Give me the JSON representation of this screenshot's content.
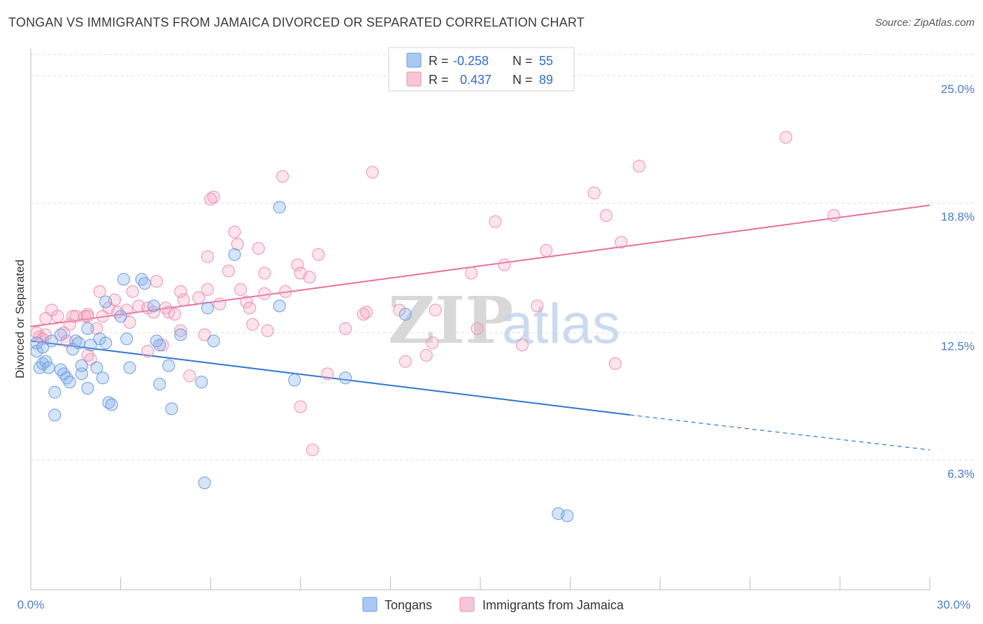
{
  "header": {
    "title": "TONGAN VS IMMIGRANTS FROM JAMAICA DIVORCED OR SEPARATED CORRELATION CHART",
    "source": "Source: ZipAtlas.com"
  },
  "watermark": {
    "part1": "ZIP",
    "part2": "atlas"
  },
  "legend": {
    "rows": [
      {
        "r_label": "R =",
        "r_value": "-0.258",
        "n_label": "N =",
        "n_value": "55",
        "color": "#a9c8f2"
      },
      {
        "r_label": "R =",
        "r_value": "0.437",
        "n_label": "N =",
        "n_value": "89",
        "color": "#f6b8cb"
      }
    ]
  },
  "bottom_legend": [
    {
      "label": "Tongans",
      "color": "#a9c8f2"
    },
    {
      "label": "Immigrants from Jamaica",
      "color": "#f6b8cb"
    }
  ],
  "colors": {
    "tongan_fill": "rgba(137,178,234,0.35)",
    "tongan_stroke": "#6b9be0",
    "jamaica_fill": "rgba(244,167,192,0.30)",
    "jamaica_stroke": "#ec8fae",
    "tongan_line": "#2f74d0",
    "jamaica_line": "#e76f98",
    "grid": "#dddddd",
    "tick_text": "#4a7bc8"
  },
  "chart_data": {
    "type": "scatter",
    "title": "TONGAN VS IMMIGRANTS FROM JAMAICA DIVORCED OR SEPARATED CORRELATION CHART",
    "xlabel": "",
    "ylabel": "Divorced or Separated",
    "xlim": [
      0,
      30
    ],
    "ylim": [
      0,
      26.3
    ],
    "x_tick_labels": [
      "0.0%",
      "30.0%"
    ],
    "y_ticks": [
      6.3,
      12.5,
      18.8,
      25.0
    ],
    "y_tick_labels": [
      "6.3%",
      "12.5%",
      "18.8%",
      "25.0%"
    ],
    "grid": true,
    "series": [
      {
        "name": "Tongans",
        "stats": {
          "R": -0.258,
          "N": 55
        },
        "trend": {
          "x0": 0,
          "y0": 12.1,
          "x1": 20,
          "y1": 8.5,
          "dash_to": 30,
          "dash_y": 6.8
        },
        "points": [
          [
            0.2,
            11.6
          ],
          [
            0.2,
            12.0
          ],
          [
            0.3,
            10.8
          ],
          [
            0.4,
            11.0
          ],
          [
            0.4,
            11.8
          ],
          [
            0.5,
            11.1
          ],
          [
            0.6,
            10.8
          ],
          [
            0.7,
            12.1
          ],
          [
            0.8,
            8.5
          ],
          [
            0.8,
            9.6
          ],
          [
            1.0,
            12.4
          ],
          [
            1.0,
            10.7
          ],
          [
            1.1,
            10.5
          ],
          [
            1.2,
            10.3
          ],
          [
            1.3,
            10.1
          ],
          [
            1.4,
            11.7
          ],
          [
            1.5,
            12.1
          ],
          [
            1.6,
            12.0
          ],
          [
            1.7,
            10.5
          ],
          [
            1.7,
            10.9
          ],
          [
            1.9,
            12.7
          ],
          [
            1.9,
            9.8
          ],
          [
            2.0,
            11.9
          ],
          [
            2.2,
            10.8
          ],
          [
            2.3,
            12.2
          ],
          [
            2.4,
            10.3
          ],
          [
            2.5,
            14.0
          ],
          [
            2.5,
            12.0
          ],
          [
            2.6,
            9.1
          ],
          [
            2.7,
            9.0
          ],
          [
            3.0,
            13.3
          ],
          [
            3.2,
            12.2
          ],
          [
            3.3,
            10.8
          ],
          [
            3.1,
            15.1
          ],
          [
            3.7,
            15.1
          ],
          [
            3.8,
            14.9
          ],
          [
            4.1,
            13.8
          ],
          [
            4.2,
            12.1
          ],
          [
            4.3,
            11.9
          ],
          [
            4.3,
            10.0
          ],
          [
            4.6,
            10.9
          ],
          [
            4.7,
            8.8
          ],
          [
            5.0,
            12.4
          ],
          [
            5.7,
            10.1
          ],
          [
            5.9,
            13.7
          ],
          [
            5.8,
            5.2
          ],
          [
            6.1,
            12.1
          ],
          [
            6.8,
            16.3
          ],
          [
            8.3,
            18.6
          ],
          [
            8.3,
            13.8
          ],
          [
            8.8,
            10.2
          ],
          [
            10.5,
            10.3
          ],
          [
            12.5,
            13.4
          ],
          [
            17.6,
            3.7
          ],
          [
            17.9,
            3.6
          ]
        ]
      },
      {
        "name": "Immigrants from Jamaica",
        "stats": {
          "R": 0.437,
          "N": 89
        },
        "trend": {
          "x0": 0,
          "y0": 12.8,
          "x1": 30,
          "y1": 18.7
        },
        "points": [
          [
            0.2,
            12.5
          ],
          [
            0.3,
            12.3
          ],
          [
            0.4,
            12.2
          ],
          [
            0.5,
            12.4
          ],
          [
            0.5,
            13.2
          ],
          [
            0.7,
            13.6
          ],
          [
            0.9,
            13.3
          ],
          [
            1.1,
            12.5
          ],
          [
            1.2,
            12.1
          ],
          [
            1.3,
            12.9
          ],
          [
            1.4,
            13.3
          ],
          [
            1.5,
            13.3
          ],
          [
            1.8,
            13.3
          ],
          [
            1.9,
            11.4
          ],
          [
            1.9,
            13.4
          ],
          [
            1.9,
            13.3
          ],
          [
            2.0,
            11.2
          ],
          [
            2.2,
            12.7
          ],
          [
            2.3,
            14.5
          ],
          [
            2.4,
            13.3
          ],
          [
            2.6,
            13.7
          ],
          [
            2.8,
            14.1
          ],
          [
            2.9,
            13.5
          ],
          [
            3.2,
            13.6
          ],
          [
            3.3,
            13.0
          ],
          [
            3.4,
            14.5
          ],
          [
            3.6,
            13.8
          ],
          [
            3.9,
            13.7
          ],
          [
            3.9,
            11.6
          ],
          [
            4.1,
            13.5
          ],
          [
            4.2,
            15.0
          ],
          [
            4.4,
            11.9
          ],
          [
            4.5,
            13.7
          ],
          [
            4.6,
            13.5
          ],
          [
            4.8,
            13.4
          ],
          [
            5.0,
            14.5
          ],
          [
            5.0,
            12.6
          ],
          [
            5.1,
            14.1
          ],
          [
            5.3,
            10.4
          ],
          [
            5.6,
            14.2
          ],
          [
            5.8,
            12.4
          ],
          [
            5.9,
            16.2
          ],
          [
            5.9,
            14.6
          ],
          [
            6.0,
            19.0
          ],
          [
            6.1,
            19.1
          ],
          [
            6.3,
            13.9
          ],
          [
            6.6,
            15.5
          ],
          [
            6.8,
            17.4
          ],
          [
            6.9,
            16.8
          ],
          [
            7.0,
            14.6
          ],
          [
            7.2,
            14.0
          ],
          [
            7.3,
            13.7
          ],
          [
            7.4,
            12.9
          ],
          [
            7.6,
            16.6
          ],
          [
            7.8,
            15.4
          ],
          [
            7.8,
            14.4
          ],
          [
            7.9,
            12.6
          ],
          [
            8.4,
            20.1
          ],
          [
            8.5,
            14.5
          ],
          [
            8.9,
            15.8
          ],
          [
            9.0,
            15.4
          ],
          [
            9.0,
            8.9
          ],
          [
            9.3,
            15.2
          ],
          [
            9.4,
            6.8
          ],
          [
            9.6,
            16.3
          ],
          [
            9.9,
            10.5
          ],
          [
            10.5,
            12.7
          ],
          [
            11.1,
            13.4
          ],
          [
            11.2,
            13.5
          ],
          [
            11.4,
            20.3
          ],
          [
            12.3,
            13.6
          ],
          [
            12.5,
            11.1
          ],
          [
            13.2,
            11.4
          ],
          [
            13.4,
            12.0
          ],
          [
            13.5,
            13.6
          ],
          [
            14.7,
            15.4
          ],
          [
            14.9,
            12.7
          ],
          [
            15.5,
            17.9
          ],
          [
            15.8,
            15.8
          ],
          [
            16.4,
            11.9
          ],
          [
            16.9,
            13.8
          ],
          [
            17.2,
            16.5
          ],
          [
            18.8,
            19.3
          ],
          [
            19.2,
            18.2
          ],
          [
            19.5,
            11.0
          ],
          [
            19.7,
            16.9
          ],
          [
            20.3,
            20.6
          ],
          [
            25.2,
            22.0
          ],
          [
            26.8,
            18.2
          ]
        ]
      }
    ]
  }
}
